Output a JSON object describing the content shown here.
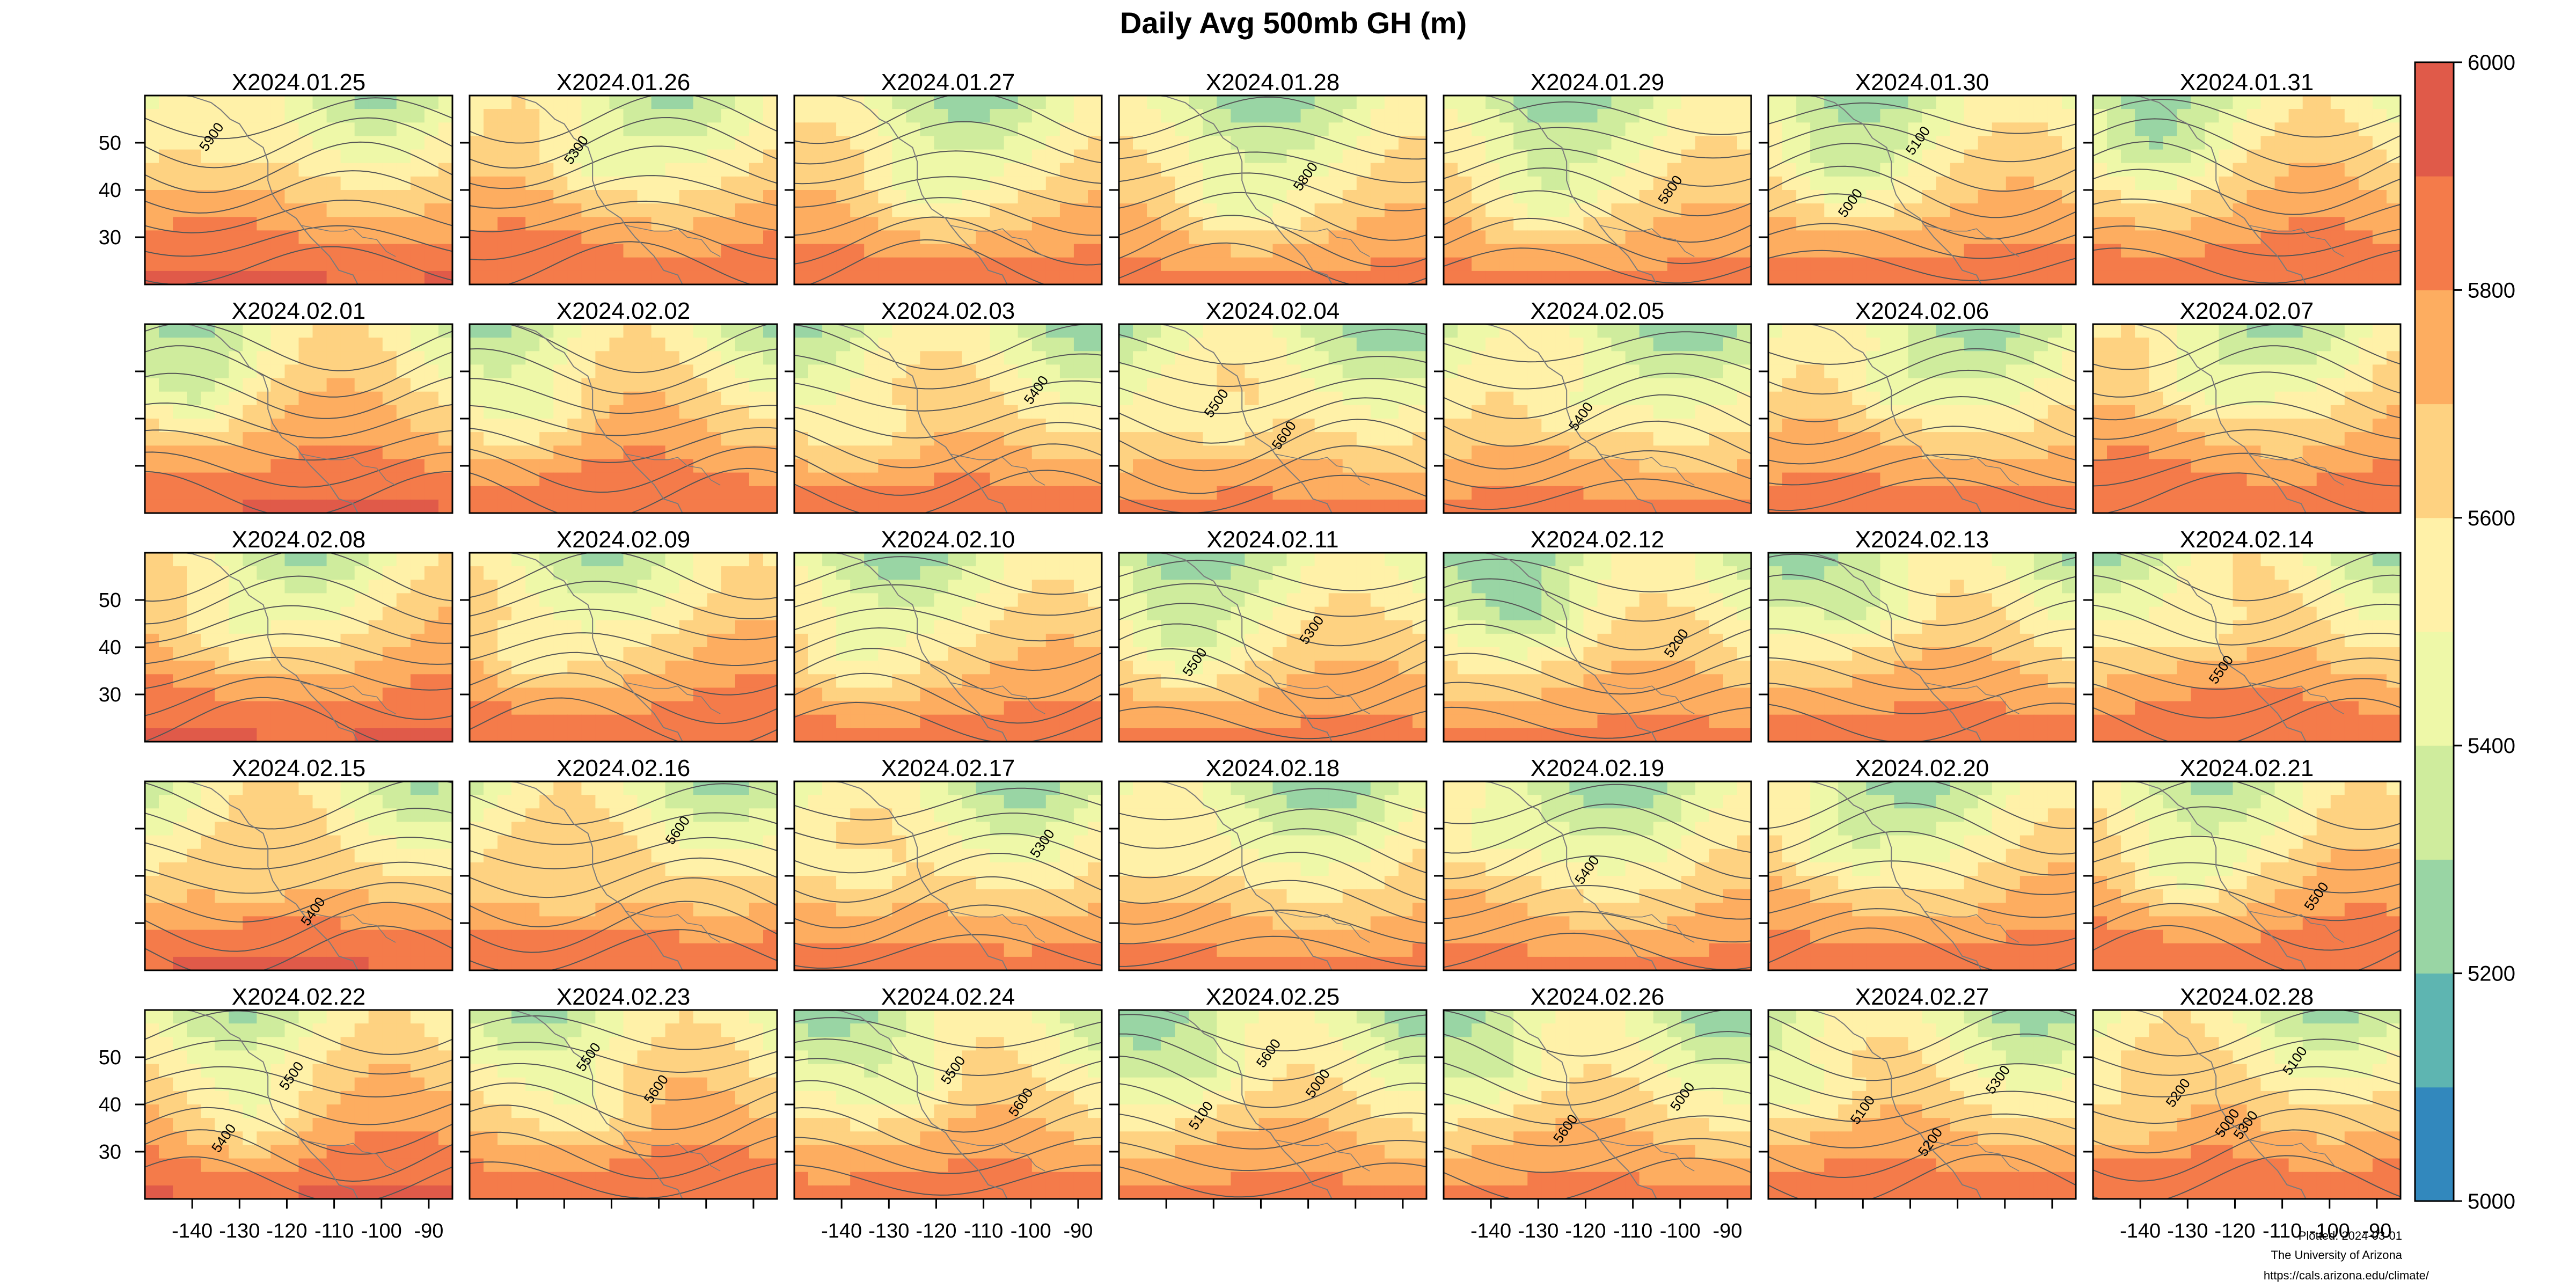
{
  "chart_data": {
    "type": "heatmap",
    "title": "Daily Avg 500mb GH (m)",
    "panels": [
      {
        "label": "X2024.01.25",
        "contour_labels": [
          "5900"
        ]
      },
      {
        "label": "X2024.01.26",
        "contour_labels": [
          "5300"
        ]
      },
      {
        "label": "X2024.01.27",
        "contour_labels": []
      },
      {
        "label": "X2024.01.28",
        "contour_labels": [
          "5800"
        ]
      },
      {
        "label": "X2024.01.29",
        "contour_labels": [
          "5800"
        ]
      },
      {
        "label": "X2024.01.30",
        "contour_labels": [
          "5000",
          "5100"
        ]
      },
      {
        "label": "X2024.01.31",
        "contour_labels": []
      },
      {
        "label": "X2024.02.01",
        "contour_labels": []
      },
      {
        "label": "X2024.02.02",
        "contour_labels": []
      },
      {
        "label": "X2024.02.03",
        "contour_labels": [
          "5400"
        ]
      },
      {
        "label": "X2024.02.04",
        "contour_labels": [
          "5500",
          "5600"
        ]
      },
      {
        "label": "X2024.02.05",
        "contour_labels": [
          "5400"
        ]
      },
      {
        "label": "X2024.02.06",
        "contour_labels": []
      },
      {
        "label": "X2024.02.07",
        "contour_labels": []
      },
      {
        "label": "X2024.02.08",
        "contour_labels": []
      },
      {
        "label": "X2024.02.09",
        "contour_labels": []
      },
      {
        "label": "X2024.02.10",
        "contour_labels": []
      },
      {
        "label": "X2024.02.11",
        "contour_labels": [
          "5300",
          "5500"
        ]
      },
      {
        "label": "X2024.02.12",
        "contour_labels": [
          "5200"
        ]
      },
      {
        "label": "X2024.02.13",
        "contour_labels": []
      },
      {
        "label": "X2024.02.14",
        "contour_labels": [
          "5500"
        ]
      },
      {
        "label": "X2024.02.15",
        "contour_labels": [
          "5400"
        ]
      },
      {
        "label": "X2024.02.16",
        "contour_labels": [
          "5600"
        ]
      },
      {
        "label": "X2024.02.17",
        "contour_labels": [
          "5300"
        ]
      },
      {
        "label": "X2024.02.18",
        "contour_labels": []
      },
      {
        "label": "X2024.02.19",
        "contour_labels": [
          "5400"
        ]
      },
      {
        "label": "X2024.02.20",
        "contour_labels": []
      },
      {
        "label": "X2024.02.21",
        "contour_labels": [
          "5500"
        ]
      },
      {
        "label": "X2024.02.22",
        "contour_labels": [
          "5400",
          "5500"
        ]
      },
      {
        "label": "X2024.02.23",
        "contour_labels": [
          "5500",
          "5600"
        ]
      },
      {
        "label": "X2024.02.24",
        "contour_labels": [
          "5500",
          "5600"
        ]
      },
      {
        "label": "X2024.02.25",
        "contour_labels": [
          "5000",
          "5100",
          "5600"
        ]
      },
      {
        "label": "X2024.02.26",
        "contour_labels": [
          "5000",
          "5600"
        ]
      },
      {
        "label": "X2024.02.27",
        "contour_labels": [
          "5100",
          "5200",
          "5300"
        ]
      },
      {
        "label": "X2024.02.28",
        "contour_labels": [
          "5000",
          "5100",
          "5200",
          "5300"
        ]
      }
    ],
    "x_ticks": [
      -140,
      -130,
      -120,
      -110,
      -100,
      -90
    ],
    "y_ticks": [
      30,
      40,
      50
    ],
    "xlim": [
      -150,
      -85
    ],
    "ylim": [
      20,
      60
    ],
    "colorbar": {
      "range": [
        5000,
        6000
      ],
      "tick_labels": [
        5000,
        5200,
        5400,
        5600,
        5800,
        6000
      ],
      "step": 100,
      "colors": [
        "#3288bd",
        "#5eb5b1",
        "#99d5a4",
        "#cfec9d",
        "#eef8a8",
        "#fff1a8",
        "#fed281",
        "#fdad60",
        "#f47b4a",
        "#e05a49"
      ]
    },
    "credit": {
      "line1": "Plotted: 2024-03-01",
      "line2": "The University of Arizona",
      "line3": "https://cals.arizona.edu/climate/"
    }
  }
}
